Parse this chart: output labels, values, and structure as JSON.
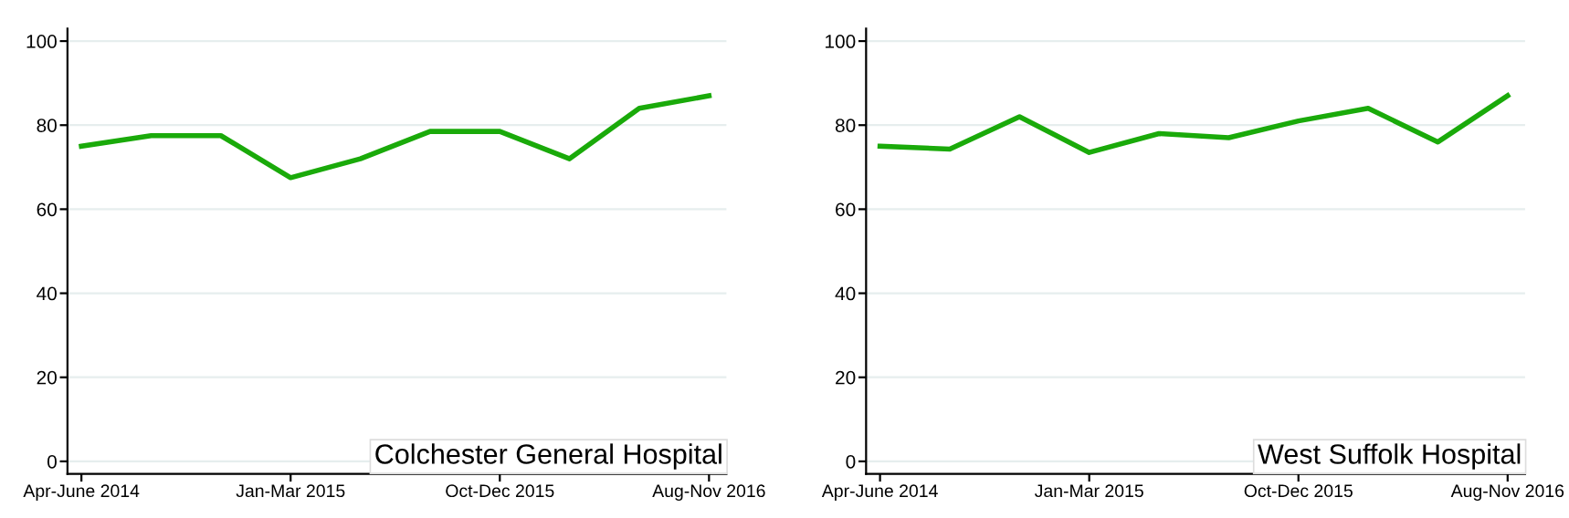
{
  "chart_data": [
    {
      "type": "line",
      "categories": [
        "Apr-June 2014",
        null,
        null,
        "Jan-Mar 2015",
        null,
        null,
        "Oct-Dec 2015",
        null,
        null,
        "Aug-Nov 2016"
      ],
      "series": [
        {
          "color": "#1aaa0a",
          "values": [
            75,
            77.5,
            77.5,
            67.5,
            72,
            78.5,
            78.5,
            72,
            84,
            87
          ]
        }
      ],
      "ylim": [
        -3,
        103
      ],
      "yticks": [
        0,
        20,
        40,
        60,
        80,
        100
      ],
      "grid": "y",
      "annotations": [
        "Colchester General Hospital"
      ]
    },
    {
      "type": "line",
      "categories": [
        "Apr-June 2014",
        null,
        null,
        "Jan-Mar 2015",
        null,
        null,
        "Oct-Dec 2015",
        null,
        null,
        "Aug-Nov 2016"
      ],
      "series": [
        {
          "color": "#1aaa0a",
          "values": [
            75,
            74.3,
            82,
            73.5,
            78,
            77,
            81,
            84,
            76,
            87
          ]
        }
      ],
      "ylim": [
        -3,
        103
      ],
      "yticks": [
        0,
        20,
        40,
        60,
        80,
        100
      ],
      "grid": "y",
      "annotations": [
        "West Suffolk Hospital"
      ]
    }
  ]
}
